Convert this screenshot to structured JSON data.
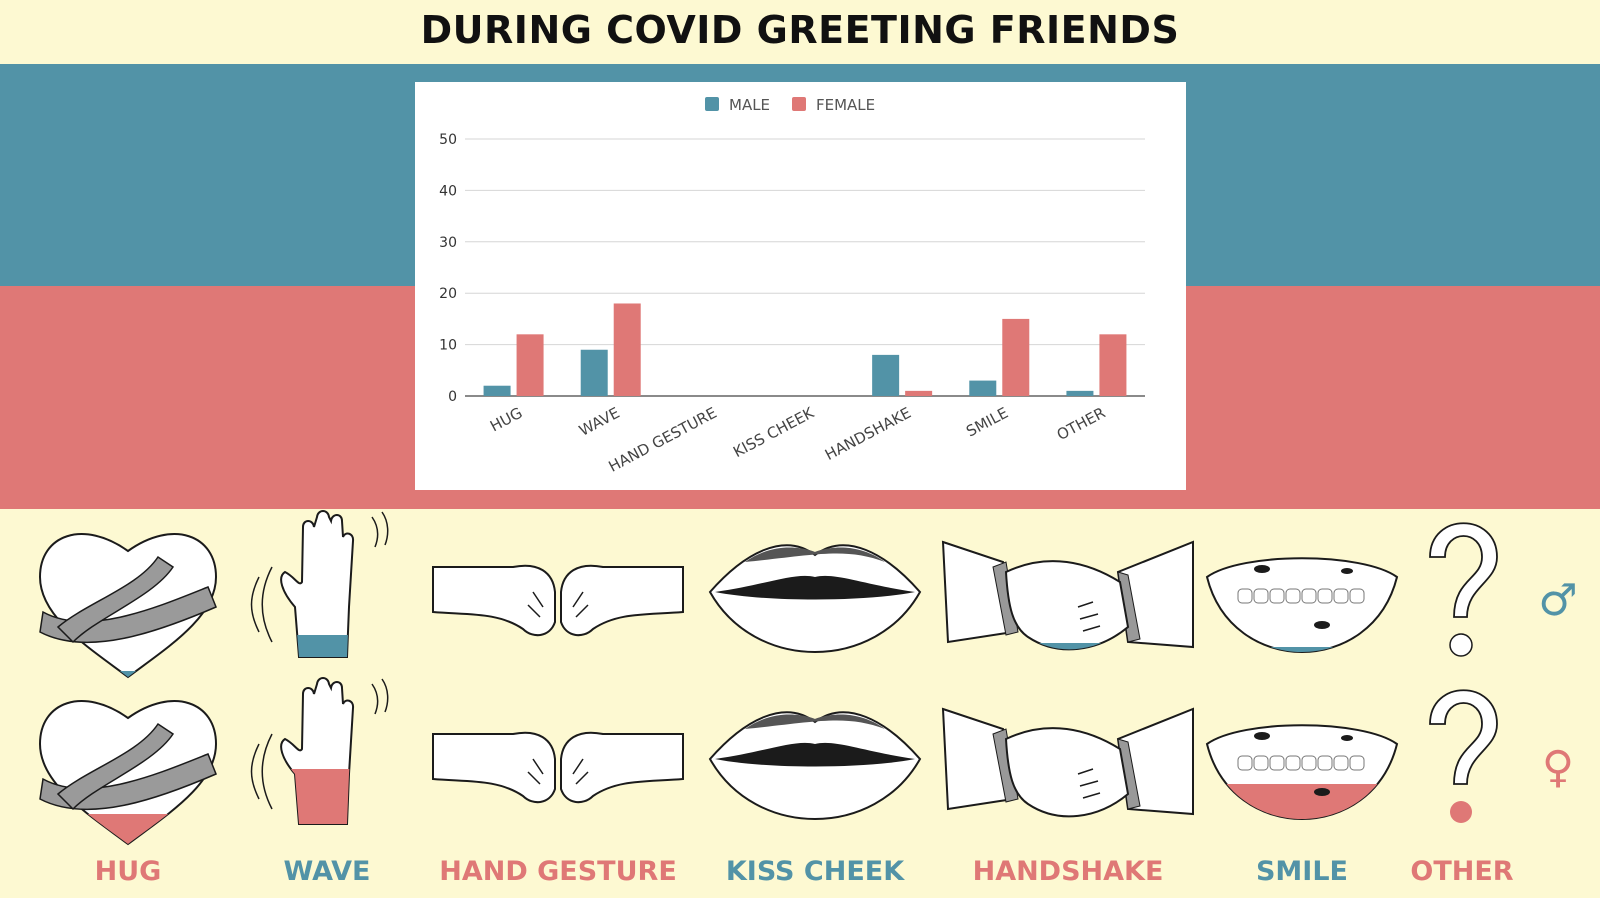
{
  "title": "DURING COVID GREETING FRIENDS",
  "colors": {
    "male": "#5293a7",
    "female": "#df7876",
    "background": "#fdf9d2"
  },
  "chart_data": {
    "type": "bar",
    "categories": [
      "HUG",
      "WAVE",
      "HAND GESTURE",
      "KISS CHEEK",
      "HANDSHAKE",
      "SMILE",
      "OTHER"
    ],
    "series": [
      {
        "name": "MALE",
        "color": "#5293a7",
        "values": [
          2,
          9,
          0,
          0,
          8,
          3,
          1
        ]
      },
      {
        "name": "FEMALE",
        "color": "#df7876",
        "values": [
          12,
          18,
          0,
          0,
          1,
          15,
          12
        ]
      }
    ],
    "ylim": [
      0,
      50
    ],
    "yticks": [
      "0",
      "10",
      "20",
      "30",
      "40",
      "50"
    ],
    "grid": true,
    "legend": "top"
  },
  "captions": [
    {
      "label": "HUG",
      "color": "#df7876"
    },
    {
      "label": "WAVE",
      "color": "#5293a7"
    },
    {
      "label": "HAND GESTURE",
      "color": "#df7876"
    },
    {
      "label": "KISS CHEEK",
      "color": "#5293a7"
    },
    {
      "label": "HANDSHAKE",
      "color": "#df7876"
    },
    {
      "label": "SMILE",
      "color": "#5293a7"
    },
    {
      "label": "OTHER",
      "color": "#df7876"
    }
  ],
  "icons": [
    "hug-icon",
    "wave-icon",
    "fist-bump-icon",
    "lips-icon",
    "handshake-icon",
    "smile-icon",
    "question-mark-icon"
  ],
  "gender_symbols": {
    "male": "♂",
    "female": "♀"
  }
}
